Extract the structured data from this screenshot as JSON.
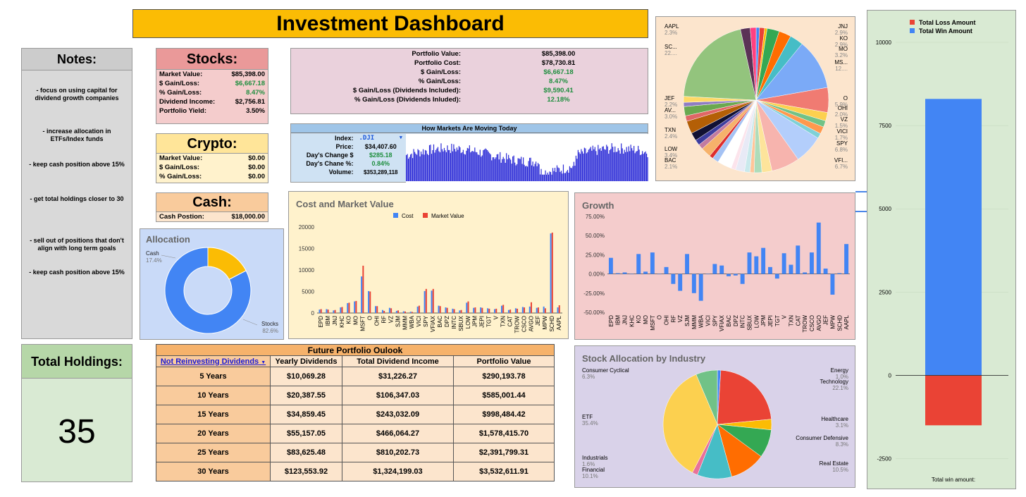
{
  "title": "Investment Dashboard",
  "notes": {
    "heading": "Notes:",
    "items": [
      "- focus on using capital for dividend growth companies",
      "- increase allocation in ETFs/Index funds",
      "- keep cash position above 15%",
      "- get total holdings closer to 30",
      "- sell out of positions that don't align with long term goals",
      "- keep cash position above 15%"
    ]
  },
  "holdings": {
    "heading": "Total Holdings:",
    "value": "35"
  },
  "stocks": {
    "heading": "Stocks:",
    "rows": [
      {
        "label": "Market Value:",
        "value": "$85,398.00"
      },
      {
        "label": "$ Gain/Loss:",
        "value": "$6,667.18"
      },
      {
        "label": "% Gain/Loss:",
        "value": "8.47%"
      },
      {
        "label": "Dividend Income:",
        "value": "$2,756.81"
      },
      {
        "label": "Portfolio Yield:",
        "value": "3.50%"
      }
    ]
  },
  "crypto": {
    "heading": "Crypto:",
    "rows": [
      {
        "label": "Market Value:",
        "value": "$0.00"
      },
      {
        "label": "$ Gain/Loss:",
        "value": "$0.00"
      },
      {
        "label": "% Gain/Loss:",
        "value": "$0.00"
      }
    ]
  },
  "cash": {
    "heading": "Cash:",
    "label": "Cash Postion:",
    "value": "$18,000.00"
  },
  "portfolio": {
    "rows": [
      {
        "label": "Portfolio Value:",
        "value": "$85,398.00"
      },
      {
        "label": "Portfolio Cost:",
        "value": "$78,730.81"
      },
      {
        "label": "$ Gain/Loss:",
        "value": "$6,667.18"
      },
      {
        "label": "% Gain/Loss:",
        "value": "8.47%"
      },
      {
        "label": "$ Gain/Loss (Dividends Included):",
        "value": "$9,590.41"
      },
      {
        "label": "% Gain/Loss (Dividends Inluded):",
        "value": "12.18%"
      }
    ]
  },
  "markets": {
    "heading": "How Markets Are Moving Today",
    "index_label": "Index:",
    "index_value": ".DJI",
    "price_label": "Price:",
    "price_value": "$34,407.60",
    "chg_label": "Day's Change $",
    "chg_value": "$285.18",
    "pct_label": "Day's Chane %:",
    "pct_value": "0.84%",
    "vol_label": "Volume:",
    "vol_value": "$353,289,118"
  },
  "future": {
    "title": "Future Portfolio Oulook",
    "selector": "Not Reinvesting Dividends",
    "headers": [
      "Yearly Dividends",
      "Total Dividend Income",
      "Portfolio Value"
    ],
    "rows": [
      {
        "period": "5 Years",
        "yearly": "$10,069.28",
        "total": "$31,226.27",
        "value": "$290,193.78"
      },
      {
        "period": "10 Years",
        "yearly": "$20,387.55",
        "total": "$106,347.03",
        "value": "$585,001.44"
      },
      {
        "period": "15 Years",
        "yearly": "$34,859.45",
        "total": "$243,032.09",
        "value": "$998,484.42"
      },
      {
        "period": "20 Years",
        "yearly": "$55,157.05",
        "total": "$466,064.27",
        "value": "$1,578,415.70"
      },
      {
        "period": "25 Years",
        "yearly": "$83,625.48",
        "total": "$810,202.73",
        "value": "$2,391,799.31"
      },
      {
        "period": "30 Years",
        "yearly": "$123,553.92",
        "total": "$1,324,199.03",
        "value": "$3,532,611.91"
      }
    ]
  },
  "colors": {
    "blue": "#4285f4",
    "red": "#ea4335",
    "yellow": "#fbbc04",
    "green": "#34a853"
  },
  "chart_data": [
    {
      "id": "allocation",
      "type": "pie",
      "title": "Allocation",
      "slices": [
        {
          "label": "Cash",
          "pct": "17.4%",
          "value": 17.4,
          "color": "#fbbc04"
        },
        {
          "label": "Stocks",
          "pct": "82.6%",
          "value": 82.6,
          "color": "#4285f4"
        }
      ]
    },
    {
      "id": "cost_market",
      "type": "bar",
      "title": "Cost and Market Value",
      "legend": [
        "Cost",
        "Market Value"
      ],
      "categories": [
        "EPD",
        "IBM",
        "JNJ",
        "KHC",
        "KO",
        "MO",
        "MSFT",
        "O",
        "OHI",
        "RF",
        "VZ",
        "SJM",
        "MMM",
        "WBA",
        "VICI",
        "SPY",
        "VFIAX",
        "BAC",
        "DPZ",
        "INTC",
        "SBUX",
        "LOW",
        "JPM",
        "JEPI",
        "TGT",
        "V",
        "TXN",
        "CAT",
        "TROW",
        "CSCO",
        "AVGO",
        "JEF",
        "MPW",
        "SCHD",
        "AAPL"
      ],
      "series": [
        {
          "name": "Cost",
          "values": [
            800,
            900,
            600,
            1300,
            2300,
            2700,
            8500,
            5100,
            1600,
            700,
            1200,
            500,
            400,
            300,
            1500,
            5100,
            5200,
            1700,
            1300,
            1000,
            600,
            2400,
            1200,
            1300,
            1100,
            900,
            1700,
            700,
            1100,
            1400,
            1500,
            1200,
            1500,
            18500,
            1300
          ]
        },
        {
          "name": "Market Value",
          "values": [
            900,
            800,
            700,
            1400,
            2400,
            2800,
            11000,
            5000,
            1600,
            500,
            1100,
            600,
            350,
            250,
            1700,
            5600,
            5600,
            1600,
            1200,
            900,
            700,
            2700,
            1300,
            1200,
            1000,
            1000,
            1900,
            800,
            1000,
            1300,
            2500,
            1300,
            1100,
            18700,
            1800
          ]
        }
      ],
      "ylim": [
        0,
        20000
      ],
      "yticks": [
        "0",
        "5000",
        "10000",
        "15000",
        "20000"
      ]
    },
    {
      "id": "growth",
      "type": "bar",
      "title": "Growth",
      "categories": [
        "EPD",
        "IBM",
        "JNJ",
        "KHC",
        "KO",
        "MO",
        "MSFT",
        "O",
        "OHI",
        "RF",
        "VZ",
        "SJM",
        "MMM",
        "WBA",
        "VICI",
        "SPY",
        "VFIAX",
        "BAC",
        "DPZ",
        "INTC",
        "SBUX",
        "LOW",
        "JPM",
        "JEPI",
        "TGT",
        "V",
        "TXN",
        "CAT",
        "TROW",
        "CSCO",
        "AVGO",
        "JEF",
        "MPW",
        "SCHD",
        "AAPL"
      ],
      "values": [
        0.21,
        0.01,
        0.02,
        0,
        0.26,
        0.03,
        0.28,
        0.0,
        0.09,
        -0.13,
        -0.22,
        0.26,
        -0.25,
        -0.35,
        0,
        0.13,
        0.11,
        -0.03,
        -0.02,
        -0.13,
        0.28,
        0.23,
        0.34,
        0.09,
        -0.06,
        0.27,
        0.12,
        0.37,
        0.02,
        0.28,
        0.67,
        0.07,
        -0.27,
        0.01,
        0.39
      ],
      "ylim": [
        -0.5,
        0.75
      ],
      "yticks": [
        "-50.00%",
        "-25.00%",
        "0.00%",
        "25.00%",
        "50.00%",
        "75.00%"
      ]
    },
    {
      "id": "holdings_pie",
      "type": "pie",
      "labels": [
        {
          "name": "AAPL",
          "pct": "2.3%"
        },
        {
          "name": "SC...",
          "pct": "22...."
        },
        {
          "name": "JEF",
          "pct": "2.2%"
        },
        {
          "name": "AV...",
          "pct": "3.0%"
        },
        {
          "name": "TXN",
          "pct": "2.4%"
        },
        {
          "name": "LOW",
          "pct": "3.4%"
        },
        {
          "name": "BAC",
          "pct": "2.1%"
        },
        {
          "name": "JNJ",
          "pct": "2.9%"
        },
        {
          "name": "KO",
          "pct": "2.9%"
        },
        {
          "name": "MO",
          "pct": "3.2%"
        },
        {
          "name": "MS...",
          "pct": "12...."
        },
        {
          "name": "O",
          "pct": "5.9%"
        },
        {
          "name": "OHI",
          "pct": "2.0%"
        },
        {
          "name": "VZ",
          "pct": "1.5%"
        },
        {
          "name": "VICI",
          "pct": "1.7%"
        },
        {
          "name": "SPY",
          "pct": "6.8%"
        },
        {
          "name": "VFI...",
          "pct": "6.7%"
        }
      ]
    },
    {
      "id": "industry",
      "type": "pie",
      "title": "Stock Allocation by Industry",
      "slices": [
        {
          "label": "Energy",
          "pct": "1.0%",
          "value": 1.0,
          "color": "#4285f4"
        },
        {
          "label": "Technology",
          "pct": "22.1%",
          "value": 22.1,
          "color": "#ea4335"
        },
        {
          "label": "Healthcare",
          "pct": "3.1%",
          "value": 3.1,
          "color": "#fbbc04"
        },
        {
          "label": "Consumer Defensive",
          "pct": "8.3%",
          "value": 8.3,
          "color": "#34a853"
        },
        {
          "label": "Real Estate",
          "pct": "10.5%",
          "value": 10.5,
          "color": "#ff6d01"
        },
        {
          "label": "Financial",
          "pct": "10.1%",
          "value": 10.1,
          "color": "#46bdc6"
        },
        {
          "label": "Industrials",
          "pct": "1.6%",
          "value": 1.6,
          "color": "#e8719a"
        },
        {
          "label": "ETF",
          "pct": "35.4%",
          "value": 35.4,
          "color": "#fcd04f"
        },
        {
          "label": "Consumer Cyclical",
          "pct": "6.3%",
          "value": 6.3,
          "color": "#71c287"
        }
      ]
    },
    {
      "id": "win_loss",
      "type": "bar",
      "legend": [
        "Total Loss Amount",
        "Total Win Amount"
      ],
      "series": [
        {
          "name": "Total Win Amount",
          "value": 8300,
          "color": "#4285f4"
        },
        {
          "name": "Total Loss Amount",
          "value": -1500,
          "color": "#ea4335"
        }
      ],
      "ylim": [
        -2700,
        10000
      ],
      "yticks": [
        "-2500",
        "0",
        "2500",
        "5000",
        "7500",
        "10000"
      ],
      "xlabel": "Total win amount:"
    }
  ]
}
